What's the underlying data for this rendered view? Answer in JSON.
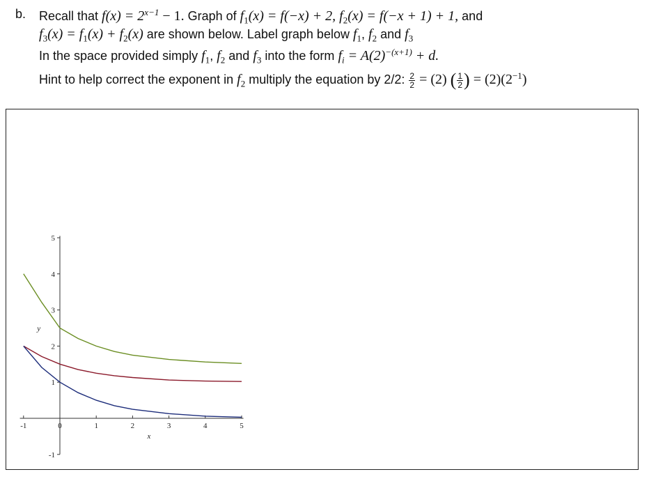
{
  "question": {
    "label": "b.",
    "line1": {
      "t1": "Recall that ",
      "m1": "f(x) = 2",
      "e1": "x−1",
      "m2": " − 1.",
      "t2": "  Graph of ",
      "m3": "f",
      "s1": "1",
      "m4": "(x) = f(−x) + 2, f",
      "s2": "2",
      "m5": "(x) = f(−x + 1) + 1,",
      "t3": " and"
    },
    "line2": {
      "m1": "f",
      "s1": "3",
      "m2": "(x) = f",
      "s2": "1",
      "m3": "(x) + f",
      "s3": "2",
      "m4": "(x)",
      "t1": " are shown below.  Label graph below ",
      "m5": "f",
      "s4": "1",
      "t2": ", ",
      "m6": "f",
      "s5": "2",
      "t3": " and ",
      "m7": "f",
      "s6": "3"
    },
    "line3": {
      "t1": "In the space provided simply ",
      "m1": "f",
      "s1": "1",
      "t2": ", ",
      "m2": "f",
      "s2": "2",
      "t3": " and ",
      "m3": "f",
      "s3": "3",
      "t4": " into the form ",
      "m4": "f",
      "s4": "i",
      "m5": " = A(2)",
      "e1": "−(x+1)",
      "m6": " + d."
    },
    "line4": {
      "t1": "Hint to help correct the exponent in ",
      "m1": "f",
      "s1": "2",
      "t2": " multiply the equation by 2/2:  ",
      "f1_num": "2",
      "f1_den": "2",
      "m2": " = (2) ",
      "f2_num": "1",
      "f2_den": "2",
      "m3": " = (2)(2",
      "e1": "−1",
      "m4": ")"
    }
  },
  "chart_data": {
    "type": "line",
    "xlabel": "x",
    "ylabel": "y",
    "xlim": [
      -1,
      5
    ],
    "ylim": [
      -1,
      5
    ],
    "x_ticks": [
      "-1",
      "0",
      "1",
      "2",
      "3",
      "4",
      "5"
    ],
    "y_ticks": [
      "-1",
      "1",
      "2",
      "3",
      "4",
      "5"
    ],
    "grid": false,
    "series": [
      {
        "color": "#6b8e23",
        "x": [
          -1,
          -0.5,
          0,
          0.5,
          1,
          1.5,
          2,
          3,
          4,
          5
        ],
        "y": [
          4.0,
          3.21,
          2.5,
          2.21,
          2.0,
          1.85,
          1.75,
          1.63,
          1.56,
          1.52
        ]
      },
      {
        "color": "#8b1a2b",
        "x": [
          -1,
          -0.5,
          0,
          0.5,
          1,
          1.5,
          2,
          3,
          4,
          5
        ],
        "y": [
          2.0,
          1.71,
          1.5,
          1.35,
          1.25,
          1.18,
          1.13,
          1.06,
          1.03,
          1.02
        ]
      },
      {
        "color": "#1c2c7a",
        "x": [
          -1,
          -0.5,
          0,
          0.5,
          1,
          1.5,
          2,
          3,
          4,
          5
        ],
        "y": [
          2.0,
          1.41,
          1.0,
          0.71,
          0.5,
          0.35,
          0.25,
          0.13,
          0.06,
          0.03
        ]
      }
    ]
  }
}
